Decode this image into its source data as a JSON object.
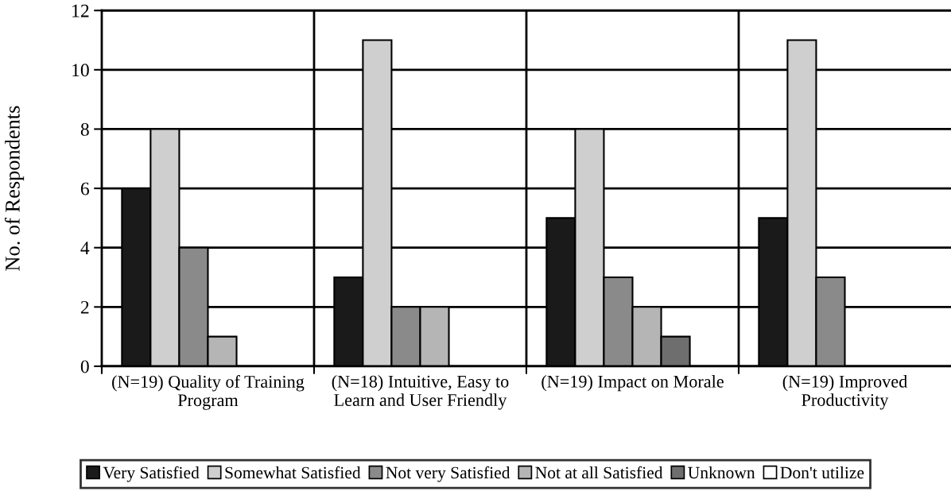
{
  "chart_data": {
    "type": "bar",
    "categories": [
      "(N=19) Quality of Training\nProgram",
      "(N=18) Intuitive, Easy to\nLearn and User Friendly",
      "(N=19) Impact on Morale",
      "(N=19) Improved\nProductivity"
    ],
    "ylabel": "No. of Respondents",
    "series": [
      {
        "name": "Very Satisfied",
        "color": "#1a1a1a",
        "values": [
          6,
          3,
          5,
          5
        ]
      },
      {
        "name": "Somewhat Satisfied",
        "color": "#cfcfcf",
        "values": [
          8,
          11,
          8,
          11
        ]
      },
      {
        "name": "Not very Satisfied",
        "color": "#8a8a8a",
        "values": [
          4,
          2,
          3,
          3
        ]
      },
      {
        "name": "Not at all Satisfied",
        "color": "#b5b5b5",
        "values": [
          1,
          2,
          2,
          0
        ]
      },
      {
        "name": "Unknown",
        "color": "#6e6e6e",
        "values": [
          0,
          0,
          1,
          0
        ]
      },
      {
        "name": "Don't utilize",
        "color": "#ffffff",
        "values": [
          0,
          0,
          0,
          0
        ]
      }
    ],
    "ylim": [
      0,
      12
    ],
    "yticks": [
      0,
      2,
      4,
      6,
      8,
      10,
      12
    ],
    "grid": true,
    "legend": "bottom"
  }
}
